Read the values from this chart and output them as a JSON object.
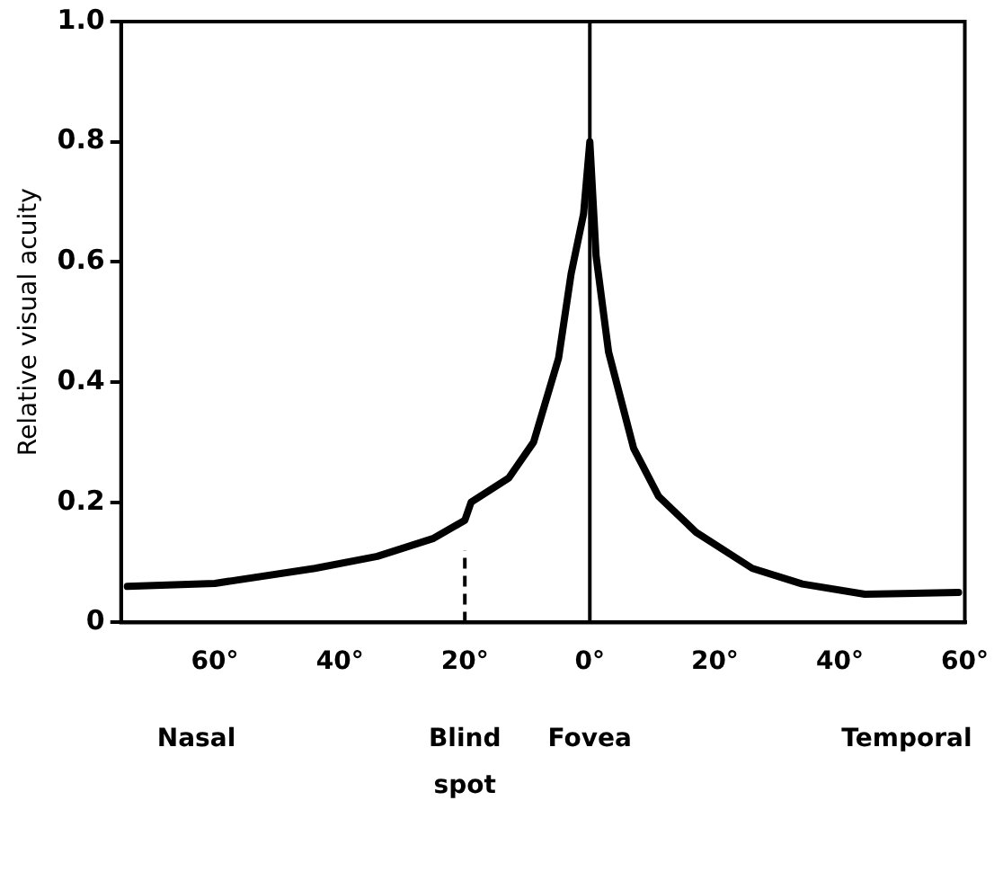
{
  "chart_data": {
    "type": "line",
    "ylabel": "Relative visual acuity",
    "x": [
      -74,
      -60,
      -44,
      -34,
      -25,
      -20,
      -19,
      -13,
      -9,
      -5,
      -3,
      -1,
      0,
      1,
      3,
      7,
      11,
      17,
      26,
      34,
      44,
      59
    ],
    "series": [
      {
        "color": "#000000",
        "values": [
          0.06,
          0.065,
          0.09,
          0.11,
          0.14,
          0.17,
          0.2,
          0.24,
          0.3,
          0.44,
          0.58,
          0.68,
          0.8,
          0.61,
          0.45,
          0.29,
          0.21,
          0.15,
          0.09,
          0.064,
          0.047,
          0.05
        ]
      }
    ],
    "xlim": [
      -75,
      60
    ],
    "xticks": [
      {
        "value": -60,
        "label": "60°"
      },
      {
        "value": -40,
        "label": "40°"
      },
      {
        "value": -20,
        "label": "20°"
      },
      {
        "value": 0,
        "label": "0°"
      },
      {
        "value": 20,
        "label": "20°"
      },
      {
        "value": 40,
        "label": "40°"
      },
      {
        "value": 60,
        "label": "60°"
      }
    ],
    "ylim": [
      0,
      1
    ],
    "yticks": [
      0,
      0.2,
      0.4,
      0.6,
      0.8,
      {
        "value": 1,
        "label": "1.0"
      }
    ],
    "ref_lines": [
      {
        "axis": "x",
        "value": -20,
        "line_style": "dashed"
      },
      {
        "axis": "x",
        "value": 0,
        "line_style": "solid"
      }
    ],
    "annotations": [
      "Nasal",
      "Blind spot",
      "Fovea",
      "Temporal"
    ],
    "grid": false,
    "legend": false,
    "marker": "none",
    "line_style": "solid"
  }
}
